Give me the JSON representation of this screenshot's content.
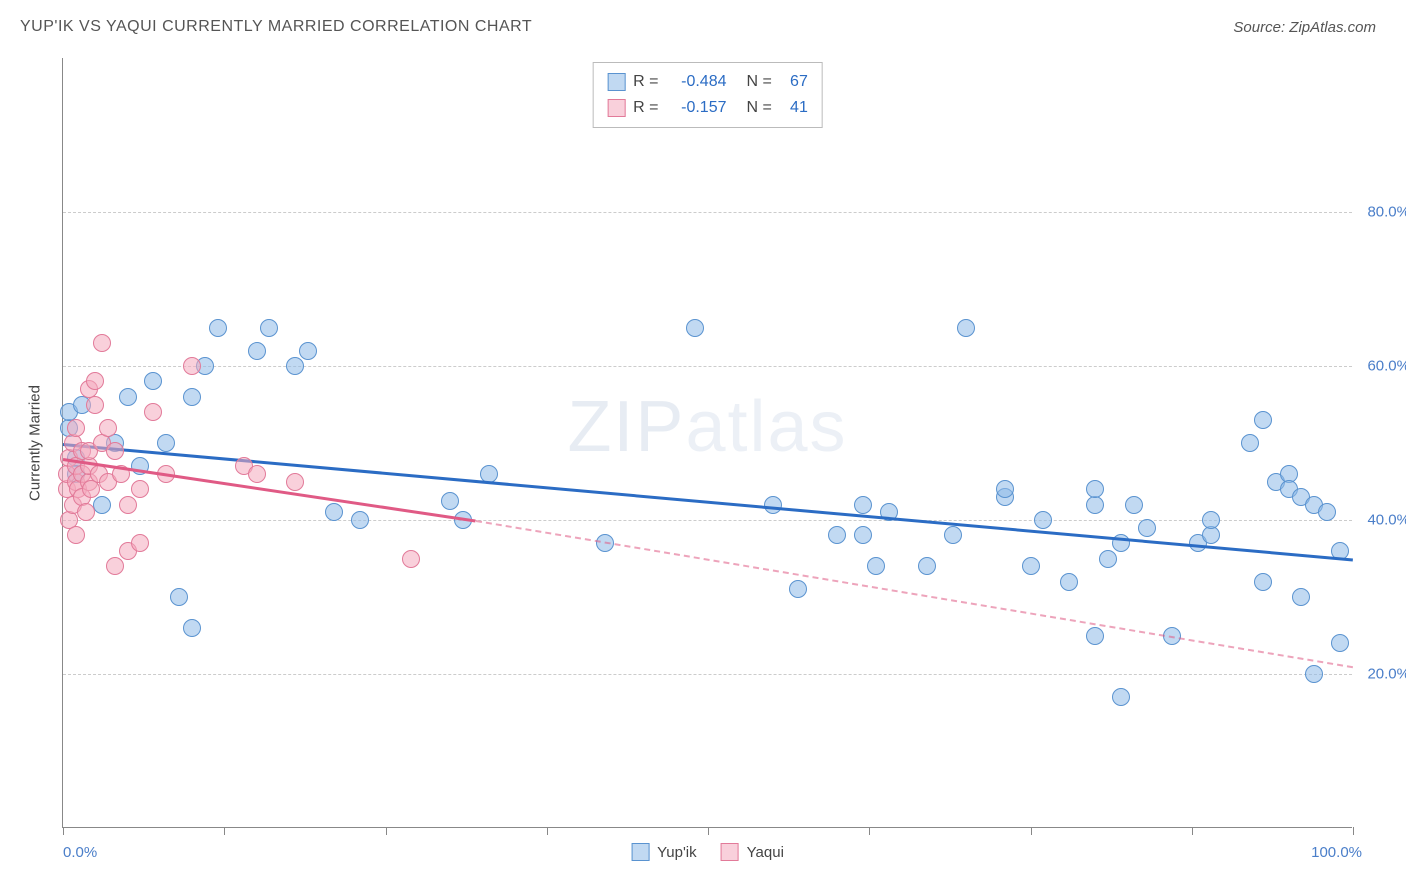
{
  "header": {
    "title": "YUP'IK VS YAQUI CURRENTLY MARRIED CORRELATION CHART",
    "source_prefix": "Source: ",
    "source_name": "ZipAtlas.com"
  },
  "chart": {
    "type": "scatter",
    "yaxis_title": "Currently Married",
    "xlim": [
      0,
      100
    ],
    "ylim": [
      0,
      100
    ],
    "x_min_label": "0.0%",
    "x_max_label": "100.0%",
    "y_gridlines": [
      20,
      40,
      60,
      80
    ],
    "y_labels": [
      "20.0%",
      "40.0%",
      "60.0%",
      "80.0%"
    ],
    "x_ticks": [
      0,
      12.5,
      25,
      37.5,
      50,
      62.5,
      75,
      87.5,
      100
    ],
    "background_color": "#ffffff",
    "grid_color": "#cccccc",
    "axis_color": "#888888",
    "tick_label_color": "#4a7ec9",
    "point_radius": 9,
    "point_border_width": 1.5,
    "watermark": "ZIPatlas",
    "series": [
      {
        "name": "Yup'ik",
        "fill": "rgba(142,185,232,0.55)",
        "stroke": "#5a93d0",
        "trend_color": "#2b6cc4",
        "trend_solid": {
          "x1": 0,
          "y1": 50,
          "x2": 100,
          "y2": 35
        },
        "trend_dash": null,
        "points": [
          [
            0.5,
            52
          ],
          [
            0.5,
            54
          ],
          [
            1,
            48
          ],
          [
            1,
            46
          ],
          [
            1.5,
            55
          ],
          [
            3,
            42
          ],
          [
            4,
            50
          ],
          [
            5,
            56
          ],
          [
            6,
            47
          ],
          [
            7,
            58
          ],
          [
            8,
            50
          ],
          [
            9,
            30
          ],
          [
            10,
            26
          ],
          [
            10,
            56
          ],
          [
            11,
            60
          ],
          [
            12,
            65
          ],
          [
            15,
            62
          ],
          [
            16,
            65
          ],
          [
            18,
            60
          ],
          [
            19,
            62
          ],
          [
            21,
            41
          ],
          [
            23,
            40
          ],
          [
            30,
            42.5
          ],
          [
            31,
            40
          ],
          [
            33,
            46
          ],
          [
            42,
            37
          ],
          [
            49,
            65
          ],
          [
            55,
            42
          ],
          [
            57,
            31
          ],
          [
            60,
            38
          ],
          [
            62,
            38
          ],
          [
            62,
            42
          ],
          [
            63,
            34
          ],
          [
            64,
            41
          ],
          [
            67,
            34
          ],
          [
            69,
            38
          ],
          [
            70,
            65
          ],
          [
            73,
            43
          ],
          [
            73,
            44
          ],
          [
            75,
            34
          ],
          [
            76,
            40
          ],
          [
            78,
            32
          ],
          [
            80,
            42
          ],
          [
            80,
            44
          ],
          [
            80,
            25
          ],
          [
            81,
            35
          ],
          [
            82,
            37
          ],
          [
            82,
            17
          ],
          [
            83,
            42
          ],
          [
            84,
            39
          ],
          [
            86,
            25
          ],
          [
            88,
            37
          ],
          [
            89,
            38
          ],
          [
            89,
            40
          ],
          [
            92,
            50
          ],
          [
            93,
            32
          ],
          [
            93,
            53
          ],
          [
            94,
            45
          ],
          [
            95,
            46
          ],
          [
            95,
            44
          ],
          [
            96,
            30
          ],
          [
            96,
            43
          ],
          [
            97,
            42
          ],
          [
            97,
            20
          ],
          [
            98,
            41
          ],
          [
            99,
            24
          ],
          [
            99,
            36
          ]
        ]
      },
      {
        "name": "Yaqui",
        "fill": "rgba(244,170,190,0.55)",
        "stroke": "#e27a99",
        "trend_color": "#e05a85",
        "trend_solid": {
          "x1": 0,
          "y1": 48,
          "x2": 32,
          "y2": 40
        },
        "trend_dash": {
          "x1": 32,
          "y1": 40,
          "x2": 100,
          "y2": 21
        },
        "points": [
          [
            0.3,
            44
          ],
          [
            0.3,
            46
          ],
          [
            0.5,
            40
          ],
          [
            0.5,
            48
          ],
          [
            0.8,
            42
          ],
          [
            0.8,
            50
          ],
          [
            1,
            38
          ],
          [
            1,
            45
          ],
          [
            1,
            47
          ],
          [
            1,
            52
          ],
          [
            1.2,
            44
          ],
          [
            1.5,
            46
          ],
          [
            1.5,
            49
          ],
          [
            1.5,
            43
          ],
          [
            1.8,
            41
          ],
          [
            2,
            45
          ],
          [
            2,
            47
          ],
          [
            2,
            49
          ],
          [
            2,
            57
          ],
          [
            2.2,
            44
          ],
          [
            2.5,
            55
          ],
          [
            2.5,
            58
          ],
          [
            2.8,
            46
          ],
          [
            3,
            50
          ],
          [
            3,
            63
          ],
          [
            3.5,
            52
          ],
          [
            3.5,
            45
          ],
          [
            4,
            34
          ],
          [
            4,
            49
          ],
          [
            4.5,
            46
          ],
          [
            5,
            36
          ],
          [
            5,
            42
          ],
          [
            6,
            44
          ],
          [
            6,
            37
          ],
          [
            7,
            54
          ],
          [
            8,
            46
          ],
          [
            10,
            60
          ],
          [
            14,
            47
          ],
          [
            15,
            46
          ],
          [
            18,
            45
          ],
          [
            27,
            35
          ]
        ]
      }
    ],
    "legend_top": {
      "rows": [
        {
          "swatch_fill": "rgba(142,185,232,0.55)",
          "swatch_stroke": "#5a93d0",
          "r_label": "R =",
          "r_value": "-0.484",
          "n_label": "N =",
          "n_value": "67"
        },
        {
          "swatch_fill": "rgba(244,170,190,0.55)",
          "swatch_stroke": "#e27a99",
          "r_label": "R =",
          "r_value": "-0.157",
          "n_label": "N =",
          "n_value": "41"
        }
      ]
    },
    "legend_bottom": [
      {
        "swatch_fill": "rgba(142,185,232,0.55)",
        "swatch_stroke": "#5a93d0",
        "label": "Yup'ik"
      },
      {
        "swatch_fill": "rgba(244,170,190,0.55)",
        "swatch_stroke": "#e27a99",
        "label": "Yaqui"
      }
    ]
  }
}
